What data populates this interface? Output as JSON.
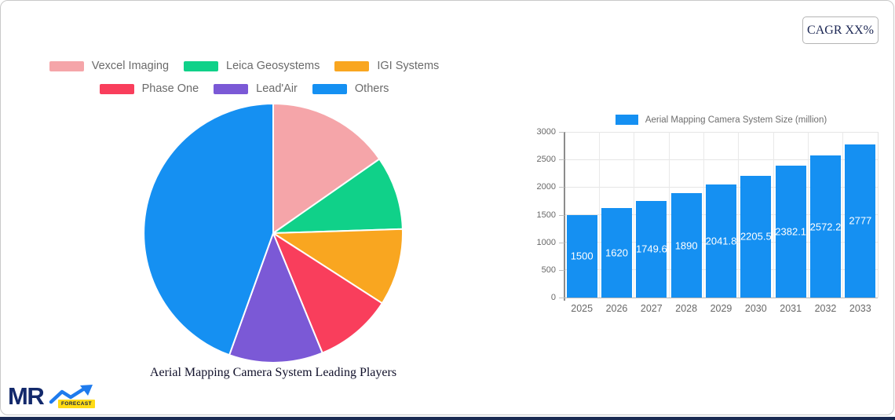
{
  "cagr": {
    "label": "CAGR XX%"
  },
  "logo": {
    "text": "MR",
    "badge": "FORECAST"
  },
  "theme": {
    "bottom_strip_color": "#1a2a52",
    "card_border_color": "#c9c9c9",
    "grid_color": "#e6e6e6",
    "axis_color": "#8c8c8c",
    "tick_label_color": "#686868"
  },
  "chart_data": [
    {
      "type": "pie",
      "title": "Aerial Mapping Camera System Leading Players",
      "legend_position": "top",
      "labels": [
        "Vexcel Imaging",
        "Leica Geosystems",
        "IGI Systems",
        "Phase One",
        "Lead'Air",
        "Others"
      ],
      "values_percent": [
        15.3,
        9.2,
        9.6,
        9.7,
        11.7,
        44.5
      ],
      "colors": [
        "#F5A5A9",
        "#10D189",
        "#F9A620",
        "#F93E5C",
        "#7B59D6",
        "#1590F2"
      ],
      "start_angle_deg": 0,
      "direction": "clockwise"
    },
    {
      "type": "bar",
      "legend": "Aerial Mapping Camera System Size (million)",
      "categories": [
        "2025",
        "2026",
        "2027",
        "2028",
        "2029",
        "2030",
        "2031",
        "2032",
        "2033"
      ],
      "values": [
        1500,
        1620,
        1749.6,
        1890,
        2041.8,
        2205.5,
        2382.1,
        2572.2,
        2777
      ],
      "bar_color": "#1590F2",
      "value_label_color": "#ffffff",
      "ylim": [
        0,
        3000
      ],
      "yticks": [
        0,
        500,
        1000,
        1500,
        2000,
        2500,
        3000
      ],
      "grid": true,
      "legend_position": "top"
    }
  ]
}
